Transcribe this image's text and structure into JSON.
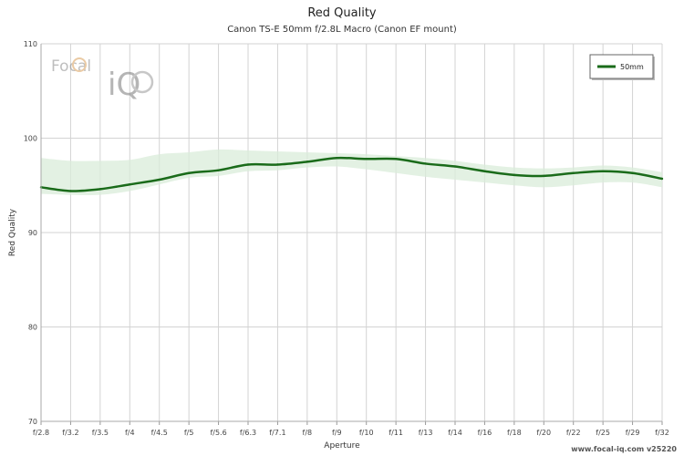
{
  "chart_data": {
    "type": "line",
    "title": "Red Quality",
    "subtitle": "Canon TS-E 50mm f/2.8L Macro (Canon EF mount)",
    "xlabel": "Aperture",
    "ylabel": "Red Quality",
    "categories": [
      "f/2.8",
      "f/3.2",
      "f/3.5",
      "f/4",
      "f/4.5",
      "f/5",
      "f/5.6",
      "f/6.3",
      "f/7.1",
      "f/8",
      "f/9",
      "f/10",
      "f/11",
      "f/13",
      "f/14",
      "f/16",
      "f/18",
      "f/20",
      "f/22",
      "f/25",
      "f/29",
      "f/32"
    ],
    "ylim": [
      70,
      110
    ],
    "yticks": [
      70,
      80,
      90,
      100,
      110
    ],
    "grid": true,
    "legend_position": "top-right",
    "series": [
      {
        "name": "50mm",
        "color": "#1a6b1a",
        "values": [
          94.8,
          94.4,
          94.6,
          95.1,
          95.6,
          96.3,
          96.6,
          97.2,
          97.2,
          97.5,
          97.9,
          97.8,
          97.8,
          97.3,
          97.0,
          96.5,
          96.1,
          96.0,
          96.3,
          96.5,
          96.3,
          95.7
        ],
        "band_upper": [
          97.9,
          97.6,
          97.6,
          97.7,
          98.3,
          98.5,
          98.8,
          98.7,
          98.6,
          98.5,
          98.4,
          98.3,
          98.1,
          97.9,
          97.6,
          97.2,
          96.9,
          96.8,
          96.9,
          97.1,
          96.9,
          96.4
        ],
        "band_lower": [
          94.1,
          94.0,
          94.0,
          94.4,
          95.1,
          95.8,
          96.0,
          96.5,
          96.6,
          96.9,
          97.0,
          96.7,
          96.3,
          95.9,
          95.6,
          95.3,
          95.0,
          94.8,
          95.0,
          95.3,
          95.3,
          94.8
        ],
        "band_color": "#d9ecd9"
      }
    ]
  },
  "logo": {
    "text_focal": "Focal",
    "text_iq": "iQ"
  },
  "footer": {
    "credit": "www.focal-iq.com  v25220"
  }
}
